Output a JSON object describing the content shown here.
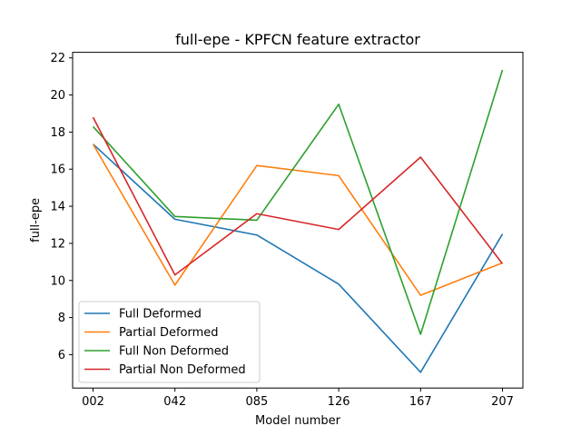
{
  "chart_data": {
    "type": "line",
    "title": "full-epe - KPFCN feature extractor",
    "xlabel": "Model number",
    "ylabel": "full-epe",
    "categories": [
      "002",
      "042",
      "085",
      "126",
      "167",
      "207"
    ],
    "ylim": [
      4.2,
      22.3
    ],
    "yticks": [
      6,
      8,
      10,
      12,
      14,
      16,
      18,
      20,
      22
    ],
    "grid": false,
    "legend_position": "lower-left",
    "series": [
      {
        "name": "Full Deformed",
        "color": "#1f77b4",
        "values": [
          17.35,
          13.3,
          12.45,
          9.8,
          5.05,
          12.5
        ]
      },
      {
        "name": "Partial Deformed",
        "color": "#ff7f0e",
        "values": [
          17.35,
          9.75,
          16.2,
          15.65,
          9.2,
          10.95
        ]
      },
      {
        "name": "Full Non Deformed",
        "color": "#2ca02c",
        "values": [
          18.3,
          13.45,
          13.25,
          19.5,
          7.1,
          21.35
        ]
      },
      {
        "name": "Partial Non Deformed",
        "color": "#d62728",
        "values": [
          18.8,
          10.3,
          13.6,
          12.75,
          16.65,
          10.9
        ]
      }
    ]
  }
}
